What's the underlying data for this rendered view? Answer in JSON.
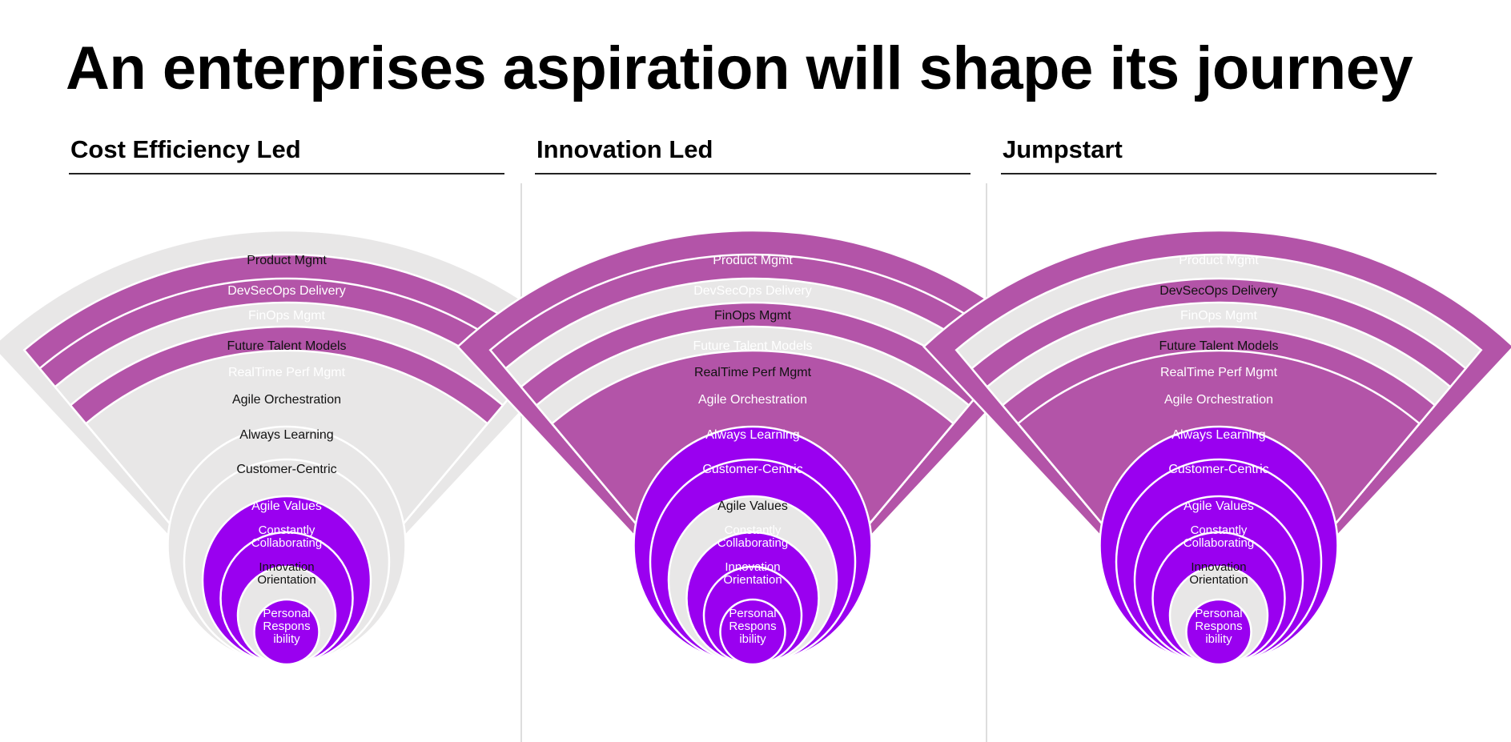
{
  "title": "An enterprises aspiration will shape its journey",
  "colors": {
    "mauve": "#b354a8",
    "violet": "#9a00f0",
    "gray": "#e8e7e7",
    "divider": "#ffffff",
    "light_text": "#ffffff",
    "dark_text": "#111111"
  },
  "rings": [
    {
      "label": "Product Mgmt",
      "lines": [
        "Product Mgmt"
      ]
    },
    {
      "label": "DevSecOps Delivery",
      "lines": [
        "DevSecOps Delivery"
      ]
    },
    {
      "label": "FinOps Mgmt",
      "lines": [
        "FinOps Mgmt"
      ]
    },
    {
      "label": "Future Talent Models",
      "lines": [
        "Future Talent Models"
      ]
    },
    {
      "label": "RealTime Perf Mgmt",
      "lines": [
        "RealTime Perf Mgmt"
      ]
    },
    {
      "label": "Agile Orchestration",
      "lines": [
        "Agile Orchestration"
      ]
    },
    {
      "label": "Always Learning",
      "lines": [
        "Always Learning"
      ]
    },
    {
      "label": "Customer-Centric",
      "lines": [
        "Customer-Centric"
      ]
    },
    {
      "label": "Agile Values",
      "lines": [
        "Agile Values"
      ]
    },
    {
      "label": "Constantly Collaborating",
      "lines": [
        "Constantly",
        "Collaborating"
      ]
    },
    {
      "label": "Innovation Orientation",
      "lines": [
        "Innovation",
        "Orientation"
      ]
    },
    {
      "label": "Personal Respons ibility",
      "lines": [
        "Personal",
        "Respons",
        "ibility"
      ]
    }
  ],
  "panels": [
    {
      "name": "Cost Efficiency Led",
      "ring_colors": [
        "gray",
        "mauve",
        "mauve",
        "gray",
        "mauve",
        "gray",
        "gray",
        "gray",
        "violet",
        "violet",
        "gray",
        "violet"
      ]
    },
    {
      "name": "Innovation Led",
      "ring_colors": [
        "mauve",
        "mauve",
        "gray",
        "mauve",
        "gray",
        "mauve",
        "violet",
        "violet",
        "gray",
        "violet",
        "violet",
        "violet"
      ]
    },
    {
      "name": "Jumpstart",
      "ring_colors": [
        "mauve",
        "gray",
        "mauve",
        "gray",
        "mauve",
        "mauve",
        "violet",
        "violet",
        "violet",
        "violet",
        "gray",
        "violet"
      ]
    }
  ]
}
